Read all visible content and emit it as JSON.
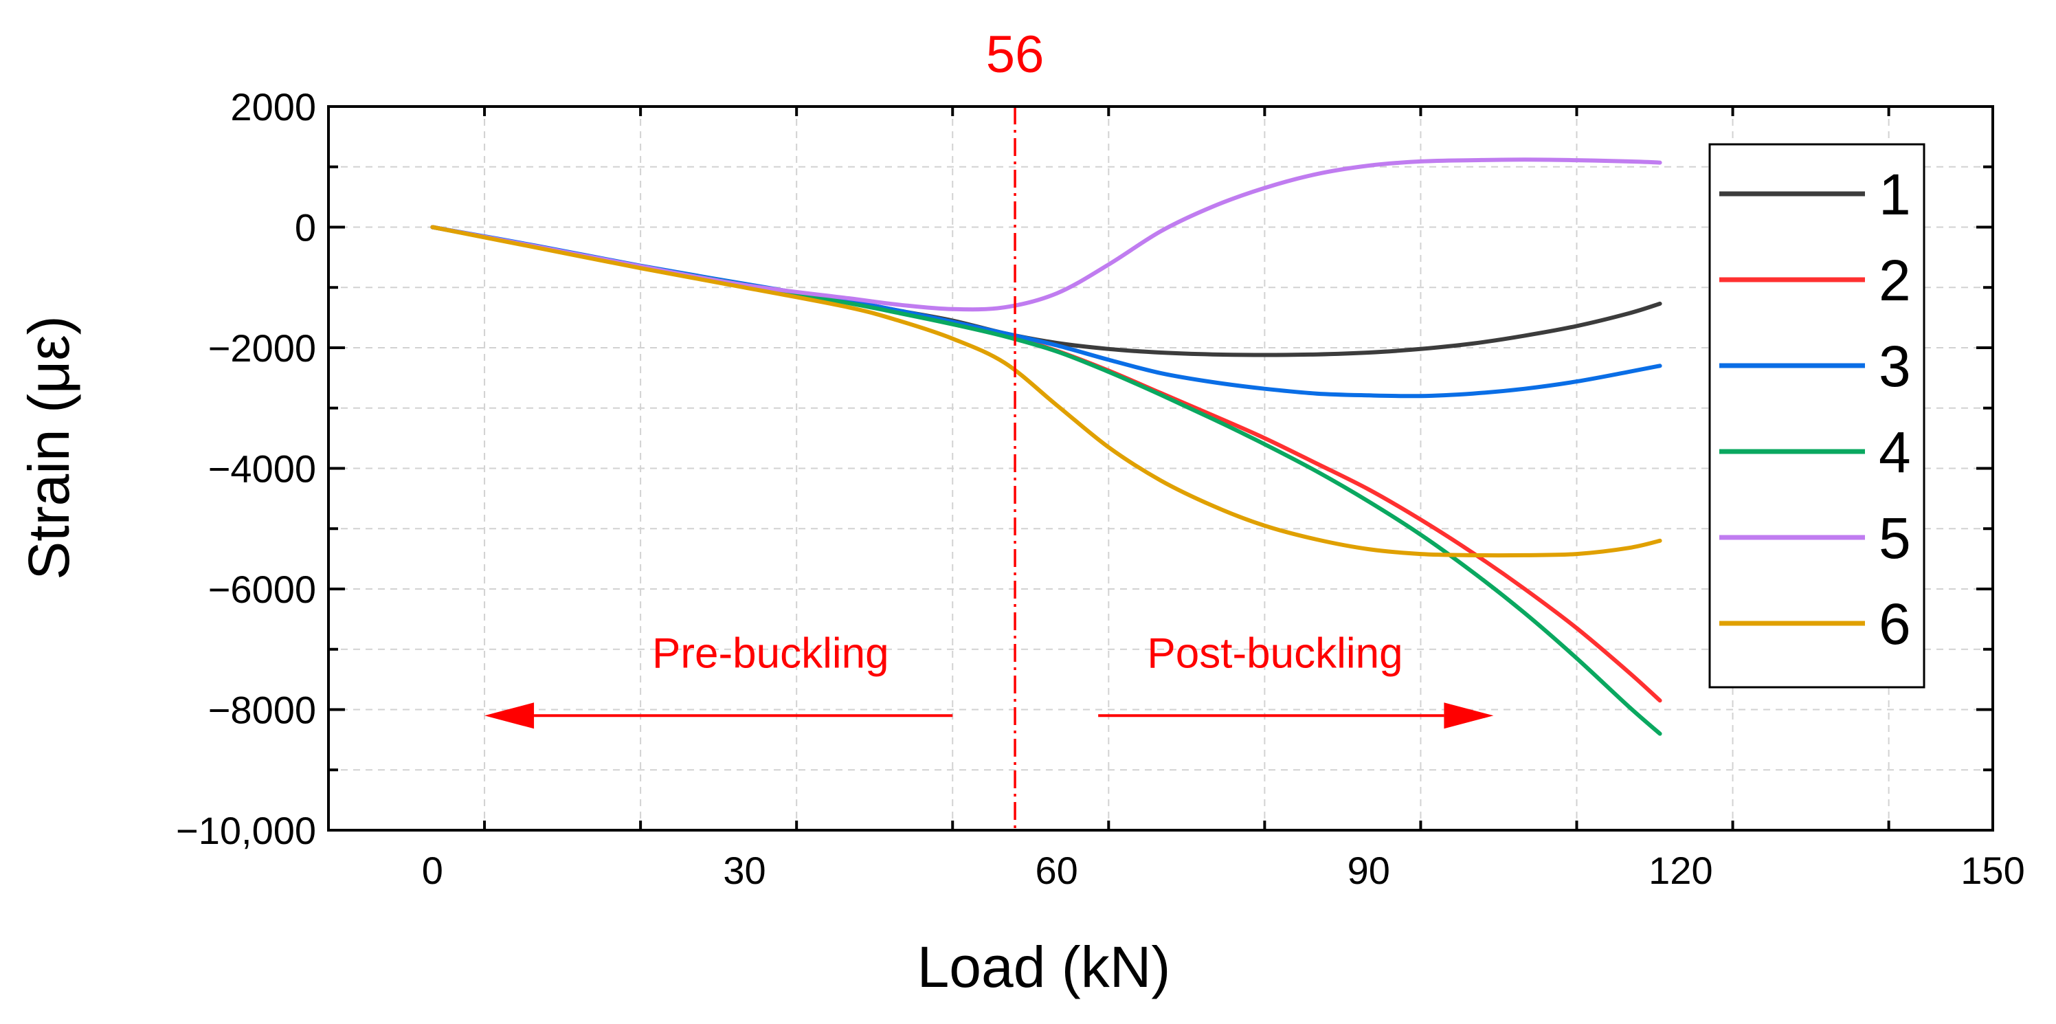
{
  "chart_data": {
    "type": "line",
    "title": "",
    "xlabel": "Load (kN)",
    "ylabel": "Strain (με)",
    "xlim": [
      -10,
      150
    ],
    "ylim": [
      -10000,
      2000
    ],
    "xticks": [
      0,
      30,
      60,
      90,
      120,
      150
    ],
    "xtick_labels": [
      "0",
      "30",
      "60",
      "90",
      "120",
      "150"
    ],
    "yticks": [
      2000,
      0,
      -2000,
      -4000,
      -6000,
      -8000,
      -10000
    ],
    "ytick_labels": [
      "2000",
      "0",
      "−2000",
      "−4000",
      "−6000",
      "−8000",
      "−10,000"
    ],
    "grid": true,
    "legend_position": "right",
    "x": [
      0,
      10,
      20,
      30,
      40,
      45,
      50,
      55,
      60,
      65,
      70,
      75,
      80,
      85,
      90,
      95,
      100,
      105,
      110,
      115,
      118
    ],
    "series": [
      {
        "name": "1",
        "color": "#3c3c3c",
        "values": [
          0,
          -320,
          -650,
          -950,
          -1230,
          -1390,
          -1550,
          -1760,
          -1920,
          -2020,
          -2080,
          -2110,
          -2120,
          -2110,
          -2080,
          -2020,
          -1930,
          -1800,
          -1640,
          -1430,
          -1270
        ]
      },
      {
        "name": "2",
        "color": "#ff3030",
        "values": [
          0,
          -320,
          -650,
          -950,
          -1240,
          -1410,
          -1590,
          -1790,
          -2050,
          -2380,
          -2750,
          -3120,
          -3500,
          -3920,
          -4350,
          -4850,
          -5400,
          -6000,
          -6650,
          -7380,
          -7850
        ]
      },
      {
        "name": "3",
        "color": "#0a6ee6",
        "values": [
          0,
          -310,
          -640,
          -940,
          -1230,
          -1390,
          -1570,
          -1760,
          -1960,
          -2200,
          -2420,
          -2570,
          -2680,
          -2760,
          -2790,
          -2800,
          -2760,
          -2680,
          -2560,
          -2400,
          -2300
        ]
      },
      {
        "name": "4",
        "color": "#0aa860",
        "values": [
          0,
          -330,
          -660,
          -960,
          -1260,
          -1430,
          -1610,
          -1810,
          -2060,
          -2400,
          -2780,
          -3180,
          -3600,
          -4050,
          -4550,
          -5100,
          -5720,
          -6400,
          -7150,
          -7950,
          -8400
        ]
      },
      {
        "name": "5",
        "color": "#c07cf0",
        "values": [
          0,
          -320,
          -650,
          -960,
          -1180,
          -1290,
          -1360,
          -1330,
          -1100,
          -620,
          -70,
          340,
          650,
          880,
          1020,
          1090,
          1110,
          1120,
          1110,
          1090,
          1070
        ]
      },
      {
        "name": "6",
        "color": "#e0a000",
        "values": [
          0,
          -340,
          -680,
          -1000,
          -1330,
          -1560,
          -1850,
          -2250,
          -2950,
          -3650,
          -4200,
          -4620,
          -4950,
          -5180,
          -5340,
          -5420,
          -5440,
          -5440,
          -5420,
          -5320,
          -5200
        ]
      }
    ],
    "annotations": {
      "vline_x": 56,
      "vline_label": "56",
      "vline_color": "#ff0000",
      "pre_label": "Pre-buckling",
      "post_label": "Post-buckling",
      "arrow_y": -8100,
      "pre_arrow_from_x": 50,
      "pre_arrow_to_x": 5,
      "post_arrow_from_x": 64,
      "post_arrow_to_x": 102
    }
  }
}
